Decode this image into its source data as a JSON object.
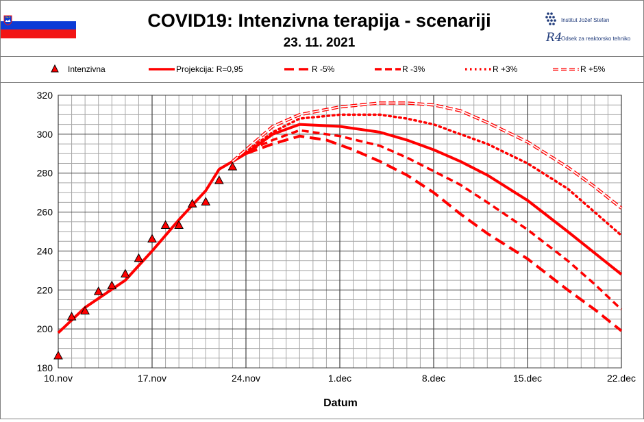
{
  "header": {
    "title": "COVID19: Intenzivna terapija - scenariji",
    "date": "23. 11. 2021",
    "logo_ijs": "Institut Jožef Stefan",
    "logo_r4_mark": "R4",
    "logo_r4_text": "Odsek za reaktorsko tehniko"
  },
  "colors": {
    "series": "#ff0000",
    "grid_minor": "#a6a6a6",
    "grid_major": "#404040",
    "flag_white": "#ffffff",
    "flag_blue": "#0b3bd6",
    "flag_red": "#f21515"
  },
  "legend": [
    {
      "label": "Intenzivna",
      "style": "triangle"
    },
    {
      "label": "Projekcija: R=0,95",
      "style": "solid"
    },
    {
      "label": "R -5%",
      "style": "dash-long"
    },
    {
      "label": "R -3%",
      "style": "dash"
    },
    {
      "label": "R +3%",
      "style": "dot"
    },
    {
      "label": "R +5%",
      "style": "double"
    }
  ],
  "chart_data": {
    "type": "line",
    "title": "COVID19: Intenzivna terapija - scenariji",
    "subtitle": "23. 11. 2021",
    "xlabel": "Datum",
    "ylabel": "",
    "x_start": "10.nov",
    "x_range_days": [
      0,
      42
    ],
    "x_ticks": [
      {
        "day": 0,
        "label": "10.nov"
      },
      {
        "day": 7,
        "label": "17.nov"
      },
      {
        "day": 14,
        "label": "24.nov"
      },
      {
        "day": 21,
        "label": "1.dec"
      },
      {
        "day": 28,
        "label": "8.dec"
      },
      {
        "day": 35,
        "label": "15.dec"
      },
      {
        "day": 42,
        "label": "22.dec"
      }
    ],
    "ylim": [
      180,
      320
    ],
    "y_ticks": [
      180,
      200,
      220,
      240,
      260,
      280,
      300,
      320
    ],
    "grid": true,
    "legend_position": "top",
    "series": [
      {
        "name": "Intenzivna",
        "style": "triangle",
        "points": [
          [
            0,
            186
          ],
          [
            1,
            206
          ],
          [
            2,
            209
          ],
          [
            3,
            219
          ],
          [
            4,
            222
          ],
          [
            5,
            228
          ],
          [
            6,
            236
          ],
          [
            7,
            246
          ],
          [
            8,
            253
          ],
          [
            9,
            253
          ],
          [
            10,
            264
          ],
          [
            11,
            265
          ],
          [
            12,
            276
          ],
          [
            13,
            283
          ]
        ]
      },
      {
        "name": "Projekcija: R=0,95",
        "style": "solid",
        "points": [
          [
            0,
            198
          ],
          [
            2,
            211
          ],
          [
            5,
            225
          ],
          [
            7,
            240
          ],
          [
            9,
            256
          ],
          [
            11,
            271
          ],
          [
            12,
            282
          ],
          [
            13,
            286
          ],
          [
            14,
            290
          ],
          [
            16,
            300
          ],
          [
            18,
            305
          ],
          [
            21,
            304
          ],
          [
            24,
            301
          ],
          [
            26,
            297
          ],
          [
            28,
            292
          ],
          [
            30,
            286
          ],
          [
            32,
            279
          ],
          [
            35,
            266
          ],
          [
            38,
            250
          ],
          [
            40,
            239
          ],
          [
            42,
            228
          ]
        ]
      },
      {
        "name": "R -5%",
        "style": "dash-long",
        "points": [
          [
            13,
            286
          ],
          [
            14,
            290
          ],
          [
            16,
            295
          ],
          [
            18,
            299
          ],
          [
            20,
            297
          ],
          [
            22,
            292
          ],
          [
            24,
            286
          ],
          [
            26,
            279
          ],
          [
            28,
            270
          ],
          [
            30,
            259
          ],
          [
            32,
            249
          ],
          [
            35,
            236
          ],
          [
            38,
            220
          ],
          [
            40,
            210
          ],
          [
            42,
            199
          ]
        ]
      },
      {
        "name": "R -3%",
        "style": "dash",
        "points": [
          [
            13,
            286
          ],
          [
            14,
            291
          ],
          [
            16,
            297
          ],
          [
            18,
            302
          ],
          [
            21,
            299
          ],
          [
            24,
            294
          ],
          [
            26,
            288
          ],
          [
            28,
            281
          ],
          [
            30,
            274
          ],
          [
            32,
            265
          ],
          [
            35,
            251
          ],
          [
            38,
            235
          ],
          [
            40,
            223
          ],
          [
            42,
            210
          ]
        ]
      },
      {
        "name": "R +3%",
        "style": "dot",
        "points": [
          [
            13,
            286
          ],
          [
            14,
            291
          ],
          [
            16,
            301
          ],
          [
            18,
            308
          ],
          [
            21,
            310
          ],
          [
            24,
            310
          ],
          [
            26,
            308
          ],
          [
            28,
            305
          ],
          [
            30,
            300
          ],
          [
            32,
            295
          ],
          [
            35,
            285
          ],
          [
            38,
            272
          ],
          [
            40,
            260
          ],
          [
            42,
            248
          ]
        ]
      },
      {
        "name": "R +5%",
        "style": "double",
        "points": [
          [
            13,
            286
          ],
          [
            14,
            292
          ],
          [
            16,
            304
          ],
          [
            18,
            310
          ],
          [
            21,
            314
          ],
          [
            24,
            316
          ],
          [
            26,
            316
          ],
          [
            28,
            315
          ],
          [
            30,
            312
          ],
          [
            32,
            306
          ],
          [
            35,
            296
          ],
          [
            38,
            283
          ],
          [
            40,
            273
          ],
          [
            42,
            262
          ]
        ]
      }
    ]
  }
}
